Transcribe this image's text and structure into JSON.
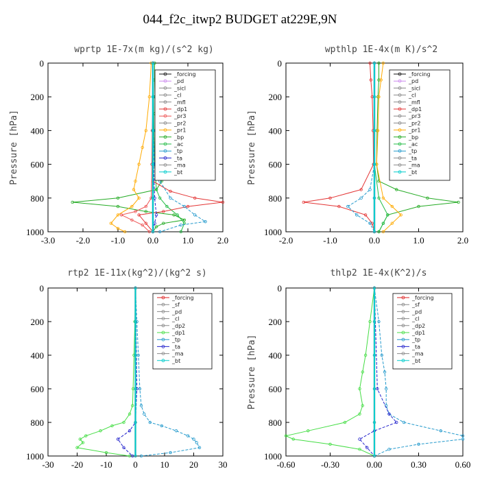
{
  "figure": {
    "title": "044_f2c_itwp2  BUDGET at229E,9N"
  },
  "chart_data": [
    {
      "type": "line",
      "title": "wprtp  1E-7x(m kg)/(s^2 kg)",
      "ylabel": "Pressure [hPa]",
      "xlim": [
        -3.0,
        2.0
      ],
      "ylim": [
        1000,
        0
      ],
      "xticks": [
        "-3.0",
        "-2.0",
        "-1.0",
        "0.0",
        "1.0",
        "2.0"
      ],
      "xtick_values": [
        -3,
        -2,
        -1,
        0,
        1,
        2
      ],
      "yticks": [
        "0",
        "200",
        "400",
        "600",
        "800",
        "1000"
      ],
      "ytick_values": [
        0,
        200,
        400,
        600,
        800,
        1000
      ],
      "legend": [
        "_forcing",
        "_pd",
        "_sicl",
        "_cl",
        "_mfl",
        "_dp1",
        "_pr3",
        "_pr2",
        "_pr1",
        "_bp",
        "_ac",
        "_tp",
        "_ta",
        "_ma",
        "_bt"
      ],
      "legend_position": "top-right",
      "series": [
        {
          "name": "_bp",
          "color": "#22aa22",
          "y": [
            0,
            100,
            200,
            300,
            400,
            500,
            600,
            650,
            700,
            750,
            800,
            825,
            850,
            880,
            900,
            930,
            950,
            970,
            1000
          ],
          "x": [
            0.05,
            0.05,
            0.06,
            0.06,
            0.08,
            0.1,
            0.15,
            0.2,
            0.25,
            0.1,
            -1.0,
            -2.3,
            -1.0,
            -0.2,
            0.6,
            0.9,
            0.3,
            0.1,
            0.0
          ]
        },
        {
          "name": "_ac",
          "color": "#22bb44",
          "y": [
            0,
            200,
            400,
            600,
            750,
            800,
            850,
            900,
            950,
            1000
          ],
          "x": [
            0.0,
            0.02,
            0.03,
            0.05,
            0.1,
            0.2,
            0.4,
            0.7,
            0.9,
            0.8
          ]
        },
        {
          "name": "_dp1",
          "color": "#e33333",
          "y": [
            0,
            200,
            400,
            600,
            700,
            760,
            800,
            825,
            850,
            880,
            900,
            950,
            1000
          ],
          "x": [
            0.0,
            0.0,
            -0.02,
            -0.03,
            0.0,
            0.5,
            1.2,
            2.0,
            1.0,
            0.3,
            -0.4,
            -0.2,
            0.0
          ]
        },
        {
          "name": "_pr1",
          "color": "#ffaa00",
          "y": [
            0,
            200,
            400,
            500,
            600,
            700,
            750,
            800,
            850,
            900,
            950,
            980,
            1000
          ],
          "x": [
            -0.05,
            -0.1,
            -0.2,
            -0.3,
            -0.4,
            -0.5,
            -0.55,
            -0.4,
            -0.6,
            -1.0,
            -1.2,
            -1.0,
            -0.8
          ]
        },
        {
          "name": "_pr3",
          "color": "#ee5555",
          "y": [
            0,
            400,
            800,
            850,
            880,
            900,
            930,
            960,
            1000
          ],
          "x": [
            0.0,
            0.0,
            -0.05,
            -0.2,
            -0.5,
            -0.9,
            -0.6,
            -0.3,
            -0.1
          ]
        },
        {
          "name": "_tp",
          "color": "#2299cc",
          "y": [
            0,
            400,
            600,
            700,
            800,
            850,
            900,
            940,
            960,
            1000
          ],
          "x": [
            0.0,
            0.01,
            0.05,
            0.2,
            0.5,
            0.9,
            1.2,
            1.5,
            0.8,
            0.2
          ]
        },
        {
          "name": "_ta",
          "color": "#2222cc",
          "y": [
            0,
            600,
            800,
            900,
            950,
            1000
          ],
          "x": [
            0.0,
            0.02,
            0.05,
            0.1,
            0.05,
            0.0
          ]
        },
        {
          "name": "_forcing",
          "color": "#111111",
          "y": [
            0,
            200,
            400,
            600,
            800,
            1000
          ],
          "x": [
            0.0,
            0.0,
            0.0,
            0.0,
            0.0,
            0.0
          ]
        },
        {
          "name": "_pd",
          "color": "#cc88ee",
          "y": [
            0,
            200,
            400,
            600,
            800,
            1000
          ],
          "x": [
            0.0,
            0.0,
            0.0,
            0.0,
            0.0,
            0.0
          ]
        },
        {
          "name": "_bt",
          "color": "#00cccc",
          "y": [
            0,
            200,
            400,
            600,
            800,
            1000
          ],
          "x": [
            0.0,
            0.0,
            0.0,
            0.0,
            0.0,
            0.0
          ]
        }
      ]
    },
    {
      "type": "line",
      "title": "wpthlp  1E-4x(m K)/s^2",
      "ylabel": "Pressure [hPa]",
      "xlim": [
        -2.0,
        2.0
      ],
      "ylim": [
        1000,
        0
      ],
      "xticks": [
        "-2.0",
        "-1.0",
        "0.0",
        "1.0",
        "2.0"
      ],
      "xtick_values": [
        -2,
        -1,
        0,
        1,
        2
      ],
      "yticks": [
        "0",
        "200",
        "400",
        "600",
        "800",
        "1000"
      ],
      "ytick_values": [
        0,
        200,
        400,
        600,
        800,
        1000
      ],
      "legend": [
        "_forcing",
        "_pd",
        "_sicl",
        "_cl",
        "_mfl",
        "_dp1",
        "_pr3",
        "_pr2",
        "_pr1",
        "_bp",
        "_ac",
        "_tp",
        "_ta",
        "_ma",
        "_bt"
      ],
      "legend_position": "top-right",
      "series": [
        {
          "name": "_bp",
          "color": "#22aa22",
          "y": [
            0,
            100,
            200,
            400,
            600,
            700,
            750,
            800,
            825,
            850,
            900,
            950,
            1000
          ],
          "x": [
            0.1,
            0.1,
            0.08,
            0.06,
            0.05,
            0.1,
            0.5,
            1.2,
            1.9,
            1.0,
            0.3,
            0.2,
            0.1
          ]
        },
        {
          "name": "_dp1",
          "color": "#e33333",
          "y": [
            0,
            100,
            200,
            400,
            600,
            750,
            800,
            825,
            850,
            900,
            950,
            1000
          ],
          "x": [
            -0.1,
            -0.08,
            -0.05,
            -0.03,
            -0.02,
            -0.3,
            -1.0,
            -1.6,
            -0.8,
            -0.2,
            -0.05,
            0.0
          ]
        },
        {
          "name": "_pr1",
          "color": "#ffaa00",
          "y": [
            0,
            100,
            200,
            400,
            600,
            800,
            850,
            900,
            950,
            1000
          ],
          "x": [
            0.2,
            0.15,
            0.1,
            0.08,
            0.05,
            0.2,
            0.4,
            0.6,
            0.4,
            0.2
          ]
        },
        {
          "name": "_tp",
          "color": "#2299cc",
          "y": [
            0,
            600,
            750,
            800,
            850,
            900,
            950,
            1000
          ],
          "x": [
            0.0,
            0.0,
            -0.1,
            -0.3,
            -0.6,
            -0.4,
            -0.1,
            0.0
          ]
        },
        {
          "name": "_ac",
          "color": "#22bb44",
          "y": [
            0,
            600,
            800,
            900,
            950,
            1000
          ],
          "x": [
            0.0,
            0.0,
            0.1,
            0.3,
            0.2,
            0.1
          ]
        },
        {
          "name": "_forcing",
          "color": "#111111",
          "y": [
            0,
            200,
            400,
            600,
            800,
            1000
          ],
          "x": [
            0.0,
            0.0,
            0.0,
            0.0,
            0.0,
            0.0
          ]
        },
        {
          "name": "_pd",
          "color": "#cc88ee",
          "y": [
            0,
            200,
            400,
            600,
            800,
            1000
          ],
          "x": [
            0.0,
            0.0,
            0.0,
            0.0,
            0.0,
            0.0
          ]
        },
        {
          "name": "_bt",
          "color": "#00cccc",
          "y": [
            0,
            200,
            400,
            600,
            800,
            1000
          ],
          "x": [
            0.0,
            0.0,
            0.0,
            0.0,
            0.0,
            0.0
          ]
        }
      ]
    },
    {
      "type": "line",
      "title": "rtp2  1E-11x(kg^2)/(kg^2 s)",
      "ylabel": "",
      "xlim": [
        -30,
        30
      ],
      "ylim": [
        1000,
        0
      ],
      "xticks": [
        "-30",
        "-20",
        "-10",
        "0",
        "10",
        "20",
        "30"
      ],
      "xtick_values": [
        -30,
        -20,
        -10,
        0,
        10,
        20,
        30
      ],
      "yticks": [
        "0",
        "200",
        "400",
        "600",
        "800",
        "1000"
      ],
      "ytick_values": [
        0,
        200,
        400,
        600,
        800,
        1000
      ],
      "legend": [
        "_forcing",
        "_sf",
        "_pd",
        "_cl",
        "_dp2",
        "_dp1",
        "_tp",
        "_ta",
        "_ma",
        "_bt"
      ],
      "legend_position": "top-right",
      "series": [
        {
          "name": "_dp1",
          "color": "#44dd44",
          "y": [
            0,
            200,
            400,
            600,
            700,
            750,
            800,
            820,
            850,
            880,
            900,
            920,
            950,
            980,
            1000
          ],
          "x": [
            0.0,
            -0.2,
            -0.5,
            -0.8,
            -1.0,
            -2.0,
            -4.0,
            -8.0,
            -12.0,
            -17.0,
            -19.0,
            -18.0,
            -20.0,
            -10.0,
            -2.0
          ]
        },
        {
          "name": "_tp",
          "color": "#2299cc",
          "y": [
            0,
            200,
            400,
            600,
            700,
            750,
            800,
            820,
            850,
            880,
            900,
            920,
            950,
            980,
            1000
          ],
          "x": [
            0.0,
            0.5,
            1.0,
            1.5,
            2.0,
            3.0,
            5.0,
            9.0,
            14.0,
            18.0,
            20.0,
            21.0,
            22.0,
            12.0,
            2.0
          ]
        },
        {
          "name": "_ta",
          "color": "#2222cc",
          "y": [
            0,
            600,
            800,
            850,
            900,
            950,
            1000
          ],
          "x": [
            0.0,
            0.5,
            0.0,
            -2.0,
            -6.0,
            -4.0,
            -1.0
          ]
        },
        {
          "name": "_forcing",
          "color": "#dd2222",
          "y": [
            0,
            200,
            400,
            600,
            800,
            1000
          ],
          "x": [
            0.0,
            0.0,
            0.0,
            0.0,
            0.0,
            0.0
          ]
        },
        {
          "name": "_bt",
          "color": "#00cccc",
          "y": [
            0,
            200,
            400,
            600,
            800,
            1000
          ],
          "x": [
            0.0,
            0.0,
            0.0,
            0.0,
            0.0,
            0.0
          ]
        }
      ]
    },
    {
      "type": "line",
      "title": "thlp2  1E-4x(K^2)/s",
      "ylabel": "Pressure [hPa]",
      "xlim": [
        -0.6,
        0.6
      ],
      "ylim": [
        1000,
        0
      ],
      "xticks": [
        "-0.60",
        "-0.30",
        "0.00",
        "0.30",
        "0.60"
      ],
      "xtick_values": [
        -0.6,
        -0.3,
        0.0,
        0.3,
        0.6
      ],
      "yticks": [
        "0",
        "200",
        "400",
        "600",
        "800",
        "1000"
      ],
      "ytick_values": [
        0,
        200,
        400,
        600,
        800,
        1000
      ],
      "legend": [
        "_forcing",
        "_sf",
        "_pd",
        "_cl",
        "_dp2",
        "_dp1",
        "_tp",
        "_ta",
        "_ma",
        "_bt"
      ],
      "legend_position": "top-right",
      "series": [
        {
          "name": "_dp1",
          "color": "#44dd44",
          "y": [
            0,
            200,
            400,
            500,
            600,
            700,
            750,
            800,
            850,
            880,
            900,
            930,
            960,
            1000
          ],
          "x": [
            0.0,
            -0.03,
            -0.06,
            -0.08,
            -0.1,
            -0.08,
            -0.1,
            -0.2,
            -0.45,
            -0.6,
            -0.55,
            -0.3,
            -0.1,
            0.0
          ]
        },
        {
          "name": "_tp",
          "color": "#2299cc",
          "y": [
            0,
            200,
            400,
            500,
            600,
            700,
            750,
            800,
            850,
            880,
            900,
            930,
            960,
            1000
          ],
          "x": [
            0.0,
            0.03,
            0.05,
            0.07,
            0.08,
            0.08,
            0.1,
            0.2,
            0.45,
            0.68,
            0.6,
            0.3,
            0.1,
            0.0
          ]
        },
        {
          "name": "_ta",
          "color": "#2222cc",
          "y": [
            0,
            600,
            750,
            800,
            850,
            900,
            950,
            1000
          ],
          "x": [
            0.0,
            0.02,
            0.1,
            0.15,
            0.0,
            -0.1,
            -0.05,
            0.0
          ]
        },
        {
          "name": "_forcing",
          "color": "#dd2222",
          "y": [
            0,
            200,
            400,
            600,
            800,
            1000
          ],
          "x": [
            0.0,
            0.0,
            0.0,
            0.0,
            0.0,
            0.0
          ]
        },
        {
          "name": "_bt",
          "color": "#00cccc",
          "y": [
            0,
            200,
            400,
            600,
            800,
            1000
          ],
          "x": [
            0.0,
            0.0,
            0.0,
            0.0,
            0.0,
            0.0
          ]
        }
      ]
    }
  ]
}
